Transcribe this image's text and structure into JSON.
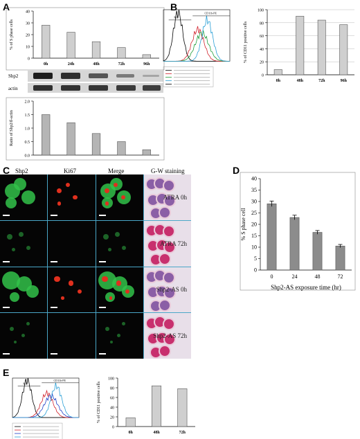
{
  "panels": {
    "A": "A",
    "B": "B",
    "C": "C",
    "D": "D",
    "E": "E"
  },
  "chart_data": [
    {
      "id": "A-top",
      "type": "bar",
      "categories": [
        "0h",
        "24h",
        "48h",
        "72h",
        "96h"
      ],
      "values": [
        28,
        22,
        14,
        9,
        3
      ],
      "ylabel": "% of S phase cells",
      "ylim": [
        0,
        40
      ],
      "yticks": [
        "0",
        "10",
        "20",
        "30",
        "40"
      ],
      "color": "#cfcfcf"
    },
    {
      "id": "A-western",
      "type": "blot",
      "rows": [
        "Shp2",
        "actin"
      ]
    },
    {
      "id": "A-bottom",
      "type": "bar",
      "categories": [
        "",
        "",
        "",
        "",
        ""
      ],
      "values": [
        1.5,
        1.2,
        0.8,
        0.5,
        0.2
      ],
      "ylabel": "Ratio of Shp2/ß-actin",
      "ylim": [
        0,
        2.0
      ],
      "yticks": [
        "0.0",
        "0.5",
        "1.0",
        "1.5",
        "2.0"
      ],
      "color": "#b5b5b5"
    },
    {
      "id": "B-flow",
      "type": "line",
      "gate_labels": [
        "M1",
        "CD11b-PE"
      ]
    },
    {
      "id": "B-bar",
      "type": "bar",
      "categories": [
        "0h",
        "48h",
        "72h",
        "96h"
      ],
      "values": [
        8,
        90,
        84,
        77
      ],
      "ylabel": "% of CD11 positive cells",
      "ylim": [
        0,
        100
      ],
      "yticks": [
        "0",
        "20",
        "40",
        "60",
        "80",
        "100"
      ],
      "color": "#cfcfcf"
    },
    {
      "id": "D",
      "type": "bar",
      "categories": [
        "0",
        "24",
        "48",
        "72"
      ],
      "values": [
        29,
        23,
        16.5,
        10.5
      ],
      "errors": [
        1.2,
        1.0,
        0.8,
        0.7
      ],
      "xlabel": "Shp2-AS exposure time (hr)",
      "ylabel": "% S phase cell",
      "ylim": [
        0,
        40
      ],
      "yticks": [
        "0",
        "5",
        "10",
        "15",
        "20",
        "25",
        "30",
        "35",
        "40"
      ],
      "color": "#8c8c8c"
    },
    {
      "id": "E-flow",
      "type": "line",
      "gate_labels": [
        "M1",
        "CD11b-PE"
      ]
    },
    {
      "id": "E-bar",
      "type": "bar",
      "categories": [
        "0h",
        "48h",
        "72h"
      ],
      "values": [
        18,
        84,
        78
      ],
      "ylabel": "% of CD11 positive cells",
      "ylim": [
        0,
        100
      ],
      "yticks": [
        "0",
        "20",
        "40",
        "60",
        "80",
        "100"
      ],
      "color": "#cfcfcf"
    }
  ],
  "micrograph": {
    "column_headers": [
      "Shp2",
      "Ki67",
      "Merge",
      "G-W staining"
    ],
    "row_labels": [
      "ATRA 0h",
      "ATRA 72h",
      "Shp2-AS 0h",
      "Shp2-AS 72h"
    ],
    "colors": {
      "green": "#33c24a",
      "red": "#e0301e",
      "border": "#4aa7c8"
    }
  }
}
